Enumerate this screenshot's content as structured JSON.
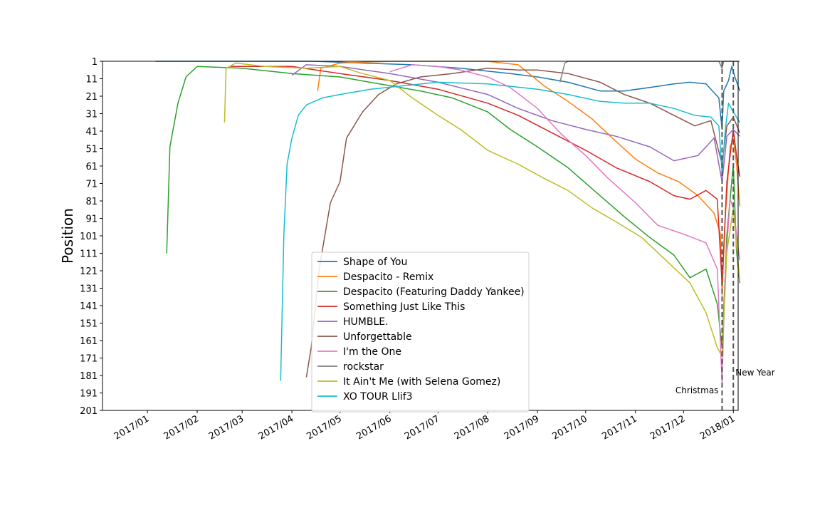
{
  "chart_data": {
    "type": "line",
    "title": "",
    "xlabel": "",
    "ylabel": "Position",
    "y_inverted": true,
    "ylim": [
      1,
      201
    ],
    "yticks": [
      1,
      11,
      21,
      31,
      41,
      51,
      61,
      71,
      81,
      91,
      101,
      111,
      121,
      131,
      141,
      151,
      161,
      171,
      181,
      191,
      201
    ],
    "xlim": [
      "2016-12-04",
      "2018-01-04"
    ],
    "xticks": [
      "2017-01-01",
      "2017-02-01",
      "2017-03-01",
      "2017-04-01",
      "2017-05-01",
      "2017-06-01",
      "2017-07-01",
      "2017-08-01",
      "2017-09-01",
      "2017-10-01",
      "2017-11-01",
      "2017-12-01",
      "2018-01-01"
    ],
    "xtick_labels": [
      "2017/01",
      "2017/02",
      "2017/03",
      "2017/04",
      "2017/05",
      "2017/06",
      "2017/07",
      "2017/08",
      "2017/09",
      "2017/10",
      "2017/11",
      "2017/12",
      "2018/01"
    ],
    "grid": false,
    "legend_position": "lower-center",
    "annotations": [
      {
        "label": "Christmas",
        "date": "2017-12-25"
      },
      {
        "label": "New Year",
        "date": "2018-01-01"
      }
    ],
    "series": [
      {
        "name": "Shape of You",
        "color": "#1f77b4",
        "points": [
          [
            "2017-01-06",
            1
          ],
          [
            "2017-03-01",
            1
          ],
          [
            "2017-04-15",
            1
          ],
          [
            "2017-05-15",
            2
          ],
          [
            "2017-06-15",
            3
          ],
          [
            "2017-07-15",
            5
          ],
          [
            "2017-08-15",
            8
          ],
          [
            "2017-09-01",
            10
          ],
          [
            "2017-09-20",
            13
          ],
          [
            "2017-10-10",
            18
          ],
          [
            "2017-10-25",
            18
          ],
          [
            "2017-11-10",
            16
          ],
          [
            "2017-11-25",
            14
          ],
          [
            "2017-12-05",
            13
          ],
          [
            "2017-12-15",
            14
          ],
          [
            "2017-12-23",
            22
          ],
          [
            "2017-12-25",
            40
          ],
          [
            "2017-12-26",
            18
          ],
          [
            "2017-12-29",
            12
          ],
          [
            "2017-12-31",
            4
          ],
          [
            "2018-01-02",
            10
          ],
          [
            "2018-01-05",
            18
          ]
        ]
      },
      {
        "name": "Despacito - Remix",
        "color": "#ff7f0e",
        "points": [
          [
            "2017-04-17",
            18
          ],
          [
            "2017-04-19",
            5
          ],
          [
            "2017-05-01",
            2
          ],
          [
            "2017-06-01",
            1
          ],
          [
            "2017-07-01",
            1
          ],
          [
            "2017-08-01",
            1
          ],
          [
            "2017-08-20",
            3
          ],
          [
            "2017-09-05",
            15
          ],
          [
            "2017-09-20",
            24
          ],
          [
            "2017-10-05",
            34
          ],
          [
            "2017-10-20",
            47
          ],
          [
            "2017-11-01",
            57
          ],
          [
            "2017-11-15",
            65
          ],
          [
            "2017-11-28",
            70
          ],
          [
            "2017-12-10",
            78
          ],
          [
            "2017-12-20",
            88
          ],
          [
            "2017-12-24",
            100
          ],
          [
            "2017-12-25",
            135
          ],
          [
            "2017-12-27",
            90
          ],
          [
            "2017-12-30",
            50
          ],
          [
            "2018-01-01",
            45
          ],
          [
            "2018-01-03",
            60
          ],
          [
            "2018-01-05",
            84
          ]
        ]
      },
      {
        "name": "Despacito (Featuring Daddy Yankee)",
        "color": "#2ca02c",
        "points": [
          [
            "2017-01-13",
            111
          ],
          [
            "2017-01-15",
            50
          ],
          [
            "2017-01-20",
            25
          ],
          [
            "2017-01-25",
            10
          ],
          [
            "2017-02-01",
            4
          ],
          [
            "2017-03-01",
            5
          ],
          [
            "2017-04-01",
            8
          ],
          [
            "2017-05-01",
            10
          ],
          [
            "2017-06-01",
            15
          ],
          [
            "2017-06-20",
            18
          ],
          [
            "2017-07-10",
            22
          ],
          [
            "2017-08-01",
            30
          ],
          [
            "2017-08-15",
            40
          ],
          [
            "2017-09-01",
            50
          ],
          [
            "2017-09-20",
            62
          ],
          [
            "2017-10-05",
            74
          ],
          [
            "2017-10-25",
            90
          ],
          [
            "2017-11-10",
            102
          ],
          [
            "2017-11-25",
            112
          ],
          [
            "2017-12-05",
            125
          ],
          [
            "2017-12-15",
            120
          ],
          [
            "2017-12-22",
            140
          ],
          [
            "2017-12-25",
            165
          ],
          [
            "2017-12-28",
            100
          ],
          [
            "2018-01-01",
            60
          ],
          [
            "2018-01-03",
            110
          ],
          [
            "2018-01-05",
            128
          ]
        ]
      },
      {
        "name": "Something Just Like This",
        "color": "#d62728",
        "points": [
          [
            "2017-02-22",
            4
          ],
          [
            "2017-04-01",
            4
          ],
          [
            "2017-05-01",
            8
          ],
          [
            "2017-06-01",
            12
          ],
          [
            "2017-07-01",
            17
          ],
          [
            "2017-08-01",
            25
          ],
          [
            "2017-08-20",
            32
          ],
          [
            "2017-09-10",
            42
          ],
          [
            "2017-10-01",
            52
          ],
          [
            "2017-10-20",
            62
          ],
          [
            "2017-11-10",
            70
          ],
          [
            "2017-11-25",
            78
          ],
          [
            "2017-12-05",
            80
          ],
          [
            "2017-12-15",
            75
          ],
          [
            "2017-12-22",
            80
          ],
          [
            "2017-12-25",
            128
          ],
          [
            "2017-12-28",
            70
          ],
          [
            "2018-01-01",
            40
          ],
          [
            "2018-01-03",
            55
          ],
          [
            "2018-01-05",
            67
          ]
        ]
      },
      {
        "name": "HUMBLE.",
        "color": "#9467bd",
        "points": [
          [
            "2017-04-01",
            9
          ],
          [
            "2017-04-10",
            3
          ],
          [
            "2017-05-01",
            4
          ],
          [
            "2017-06-01",
            8
          ],
          [
            "2017-07-01",
            13
          ],
          [
            "2017-08-01",
            20
          ],
          [
            "2017-08-20",
            28
          ],
          [
            "2017-09-10",
            35
          ],
          [
            "2017-10-01",
            40
          ],
          [
            "2017-10-20",
            44
          ],
          [
            "2017-11-10",
            50
          ],
          [
            "2017-11-25",
            58
          ],
          [
            "2017-12-10",
            55
          ],
          [
            "2017-12-20",
            45
          ],
          [
            "2017-12-25",
            70
          ],
          [
            "2017-12-28",
            44
          ],
          [
            "2018-01-01",
            40
          ],
          [
            "2018-01-05",
            44
          ]
        ]
      },
      {
        "name": "Unforgettable",
        "color": "#8c564b",
        "points": [
          [
            "2017-04-10",
            182
          ],
          [
            "2017-04-13",
            165
          ],
          [
            "2017-04-18",
            120
          ],
          [
            "2017-04-25",
            82
          ],
          [
            "2017-05-01",
            70
          ],
          [
            "2017-05-05",
            45
          ],
          [
            "2017-05-15",
            30
          ],
          [
            "2017-05-25",
            20
          ],
          [
            "2017-06-05",
            14
          ],
          [
            "2017-06-20",
            10
          ],
          [
            "2017-07-10",
            8
          ],
          [
            "2017-08-01",
            5
          ],
          [
            "2017-08-20",
            6
          ],
          [
            "2017-09-01",
            6
          ],
          [
            "2017-09-20",
            8
          ],
          [
            "2017-10-10",
            13
          ],
          [
            "2017-10-25",
            20
          ],
          [
            "2017-11-10",
            25
          ],
          [
            "2017-11-25",
            32
          ],
          [
            "2017-12-08",
            38
          ],
          [
            "2017-12-18",
            35
          ],
          [
            "2017-12-25",
            60
          ],
          [
            "2017-12-28",
            38
          ],
          [
            "2018-01-01",
            33
          ],
          [
            "2018-01-05",
            42
          ]
        ]
      },
      {
        "name": "I'm the One",
        "color": "#e377c2",
        "points": [
          [
            "2017-06-01",
            7
          ],
          [
            "2017-06-15",
            3
          ],
          [
            "2017-07-01",
            4
          ],
          [
            "2017-07-15",
            6
          ],
          [
            "2017-08-01",
            10
          ],
          [
            "2017-08-15",
            16
          ],
          [
            "2017-09-01",
            28
          ],
          [
            "2017-09-15",
            42
          ],
          [
            "2017-10-01",
            55
          ],
          [
            "2017-10-15",
            68
          ],
          [
            "2017-11-01",
            82
          ],
          [
            "2017-11-15",
            95
          ],
          [
            "2017-12-01",
            100
          ],
          [
            "2017-12-15",
            105
          ],
          [
            "2017-12-22",
            120
          ],
          [
            "2017-12-25",
            185
          ],
          [
            "2017-12-27",
            120
          ],
          [
            "2017-12-30",
            80
          ],
          [
            "2018-01-01",
            85
          ],
          [
            "2018-01-03",
            100
          ],
          [
            "2018-01-05",
            115
          ]
        ]
      },
      {
        "name": "rockstar",
        "color": "#7f7f7f",
        "points": [
          [
            "2017-09-15",
            13
          ],
          [
            "2017-09-18",
            2
          ],
          [
            "2017-09-20",
            1
          ],
          [
            "2017-12-23",
            1
          ],
          [
            "2017-12-25",
            5
          ],
          [
            "2017-12-26",
            1
          ],
          [
            "2018-01-05",
            1
          ]
        ]
      },
      {
        "name": "It Ain't Me (with Selena Gomez)",
        "color": "#bcbd22",
        "points": [
          [
            "2017-02-18",
            36
          ],
          [
            "2017-02-19",
            5
          ],
          [
            "2017-02-25",
            2
          ],
          [
            "2017-03-15",
            4
          ],
          [
            "2017-04-10",
            5
          ],
          [
            "2017-05-01",
            4
          ],
          [
            "2017-05-15",
            8
          ],
          [
            "2017-06-01",
            12
          ],
          [
            "2017-06-15",
            22
          ],
          [
            "2017-07-01",
            32
          ],
          [
            "2017-07-15",
            40
          ],
          [
            "2017-08-01",
            52
          ],
          [
            "2017-08-20",
            60
          ],
          [
            "2017-09-05",
            68
          ],
          [
            "2017-09-20",
            75
          ],
          [
            "2017-10-05",
            85
          ],
          [
            "2017-10-20",
            93
          ],
          [
            "2017-11-05",
            102
          ],
          [
            "2017-11-20",
            115
          ],
          [
            "2017-12-05",
            128
          ],
          [
            "2017-12-15",
            145
          ],
          [
            "2017-12-22",
            165
          ],
          [
            "2017-12-25",
            170
          ],
          [
            "2017-12-28",
            110
          ],
          [
            "2018-01-01",
            85
          ],
          [
            "2018-01-05",
            127
          ]
        ]
      },
      {
        "name": "XO TOUR Llif3",
        "color": "#17becf",
        "points": [
          [
            "2017-03-25",
            184
          ],
          [
            "2017-03-27",
            100
          ],
          [
            "2017-03-29",
            60
          ],
          [
            "2017-04-01",
            45
          ],
          [
            "2017-04-05",
            32
          ],
          [
            "2017-04-10",
            26
          ],
          [
            "2017-04-20",
            22
          ],
          [
            "2017-05-01",
            20
          ],
          [
            "2017-05-20",
            17
          ],
          [
            "2017-06-10",
            15
          ],
          [
            "2017-07-01",
            13
          ],
          [
            "2017-08-01",
            14
          ],
          [
            "2017-09-01",
            17
          ],
          [
            "2017-09-20",
            20
          ],
          [
            "2017-10-10",
            24
          ],
          [
            "2017-10-25",
            25
          ],
          [
            "2017-11-10",
            25
          ],
          [
            "2017-11-25",
            28
          ],
          [
            "2017-12-08",
            32
          ],
          [
            "2017-12-18",
            33
          ],
          [
            "2017-12-23",
            38
          ],
          [
            "2017-12-25",
            65
          ],
          [
            "2017-12-27",
            40
          ],
          [
            "2017-12-29",
            25
          ],
          [
            "2018-01-01",
            30
          ],
          [
            "2018-01-05",
            36
          ]
        ]
      }
    ]
  }
}
